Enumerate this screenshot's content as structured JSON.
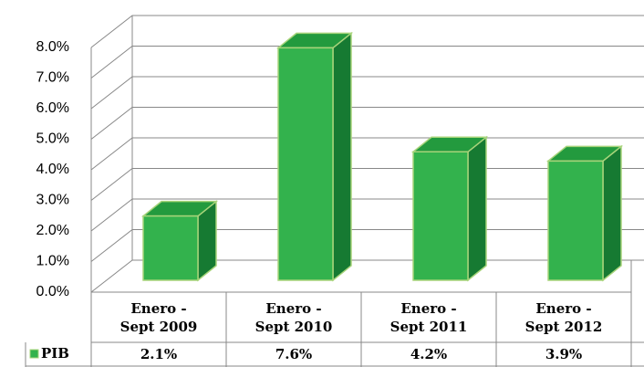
{
  "chart_data": {
    "type": "bar3d",
    "categories": [
      "Enero -\nSept 2009",
      "Enero -\nSept 2010",
      "Enero -\nSept 2011",
      "Enero -\nSept 2012"
    ],
    "series": [
      {
        "name": "PIB",
        "color": "#33b24d",
        "values": [
          2.1,
          7.6,
          4.2,
          3.9
        ],
        "value_labels": [
          "2.1%",
          "7.6%",
          "4.2%",
          "3.9%"
        ]
      }
    ],
    "ylim": [
      0,
      8
    ],
    "yticks": [
      {
        "value": 0,
        "label": "0.0%"
      },
      {
        "value": 1,
        "label": "1.0%"
      },
      {
        "value": 2,
        "label": "2.0%"
      },
      {
        "value": 3,
        "label": "3.0%"
      },
      {
        "value": 4,
        "label": "4.0%"
      },
      {
        "value": 5,
        "label": "5.0%"
      },
      {
        "value": 6,
        "label": "6.0%"
      },
      {
        "value": 7,
        "label": "7.0%"
      },
      {
        "value": 8,
        "label": "8.0%"
      }
    ],
    "grid": true
  }
}
